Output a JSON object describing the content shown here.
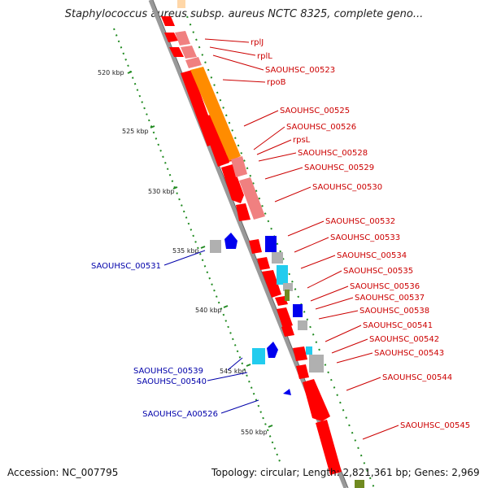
{
  "title": "Staphylococcus aureus subsp. aureus NCTC 8325, complete geno...",
  "accession": "Accession: NC_007795",
  "summary": "Topology: circular; Length: 2,821,361 bp; Genes: 2,969",
  "colors": {
    "gene_red": "#ff0000",
    "gene_pink": "#f08080",
    "gene_orange": "#ff8c00",
    "gene_blue": "#0000ee",
    "gene_cyan": "#22ccee",
    "gene_grey": "#b0b0b0",
    "gene_olive": "#708a20",
    "backbone": "#999999",
    "tick_green": "#228b22",
    "label_red": "#cc0000",
    "label_blue": "#0000aa"
  },
  "kbp_ticks": [
    "520 kbp",
    "525 kbp",
    "530 kbp",
    "535 kbp",
    "540 kbp",
    "545 kbp",
    "550 kbp"
  ],
  "gene_labels_right": [
    "rplJ",
    "rplL",
    "SAOUHSC_00523",
    "rpoB",
    "SAOUHSC_00525",
    "SAOUHSC_00526",
    "rpsL",
    "SAOUHSC_00528",
    "SAOUHSC_00529",
    "SAOUHSC_00530",
    "SAOUHSC_00532",
    "SAOUHSC_00533",
    "SAOUHSC_00534",
    "SAOUHSC_00535",
    "SAOUHSC_00536",
    "SAOUHSC_00537",
    "SAOUHSC_00538",
    "SAOUHSC_00541",
    "SAOUHSC_00542",
    "SAOUHSC_00543",
    "SAOUHSC_00544",
    "SAOUHSC_00545"
  ],
  "gene_labels_left": [
    "SAOUHSC_00531",
    "SAOUHSC_00539",
    "SAOUHSC_00540",
    "SAOUHSC_A00526"
  ]
}
